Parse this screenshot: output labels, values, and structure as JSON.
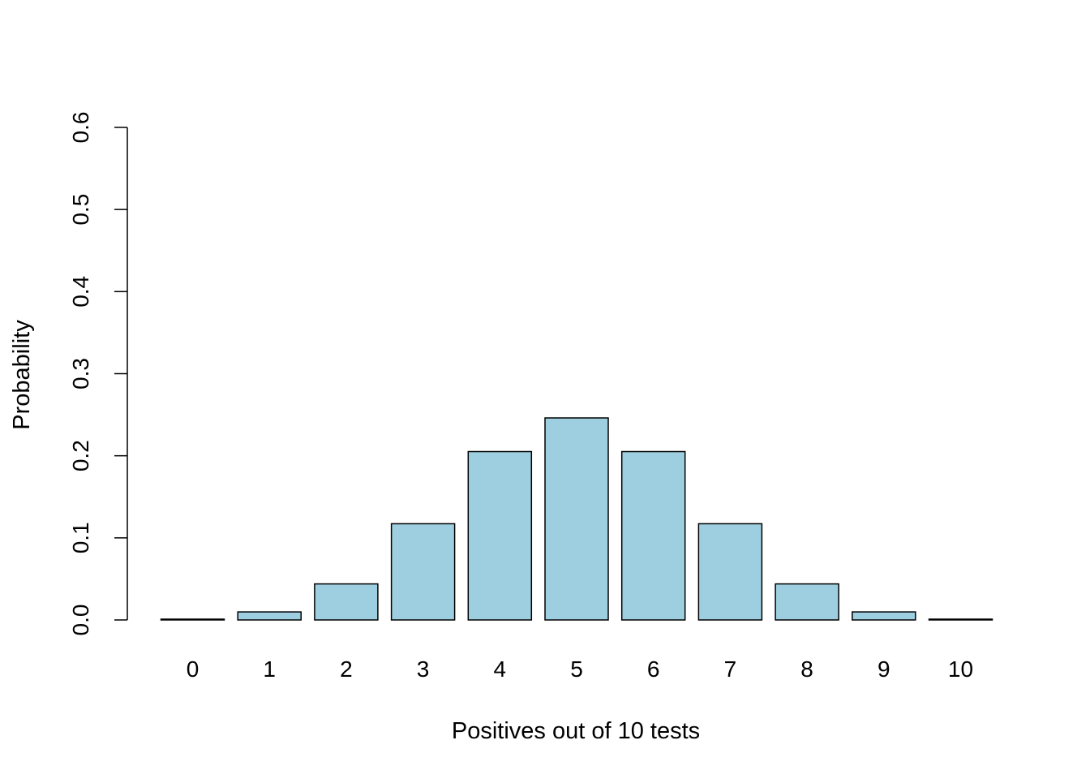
{
  "chart_data": {
    "type": "bar",
    "title": "",
    "xlabel": "Positives out of 10 tests",
    "ylabel": "Probability",
    "categories": [
      "0",
      "1",
      "2",
      "3",
      "4",
      "5",
      "6",
      "7",
      "8",
      "9",
      "10"
    ],
    "values": [
      0.001,
      0.0098,
      0.0439,
      0.1172,
      0.2051,
      0.2461,
      0.2051,
      0.1172,
      0.0439,
      0.0098,
      0.001
    ],
    "ylim": [
      0,
      0.6
    ],
    "yticks": [
      "0.0",
      "0.1",
      "0.2",
      "0.3",
      "0.4",
      "0.5",
      "0.6"
    ],
    "grid": false,
    "bar_fill": "#9ecfe0",
    "bar_stroke": "#000000"
  }
}
